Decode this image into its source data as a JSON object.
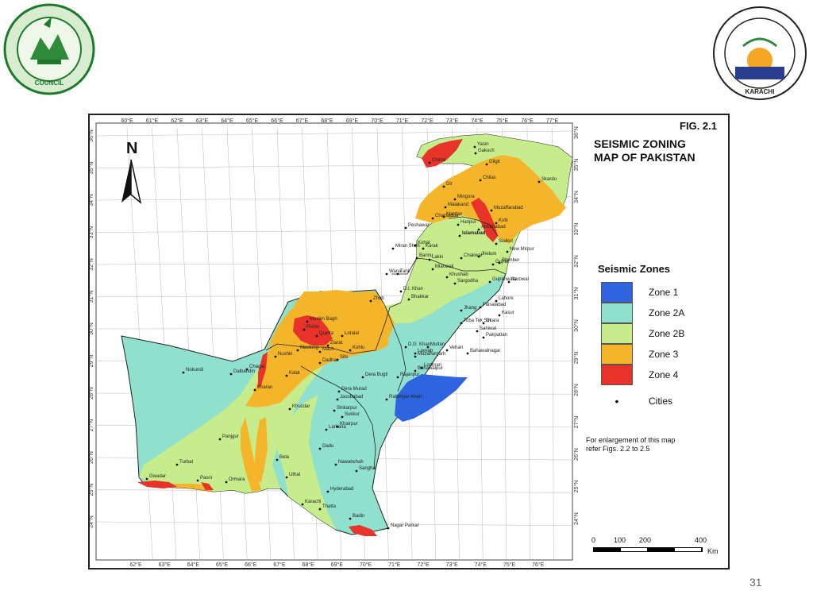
{
  "logos": {
    "left": "Pakistan Engineering Council",
    "right": "NED University of Engineering & Technology Karachi"
  },
  "figure": {
    "label": "FIG. 2.1",
    "title_line1": "SEISMIC ZONING",
    "title_line2": "MAP OF PAKISTAN",
    "north": "N"
  },
  "legend": {
    "title": "Seismic Zones",
    "zones": [
      {
        "label": "Zone 1",
        "color": "#2f64e0"
      },
      {
        "label": "Zone 2A",
        "color": "#8fe0cc"
      },
      {
        "label": "Zone 2B",
        "color": "#c6ec8c"
      },
      {
        "label": "Zone 3",
        "color": "#f5b52a"
      },
      {
        "label": "Zone 4",
        "color": "#e8332a"
      }
    ],
    "cities_symbol": "•",
    "cities_label": "Cities"
  },
  "note": {
    "line1": "For enlargement of this map",
    "line2": "refer Figs. 2.2 to 2.5"
  },
  "scale": {
    "labels": [
      "0",
      "100",
      "200",
      "400"
    ],
    "unit": "Km"
  },
  "longitudes_top": [
    "60°E",
    "61°E",
    "62°E",
    "63°E",
    "64°E",
    "65°E",
    "66°E",
    "67°E",
    "68°E",
    "69°E",
    "70°E",
    "71°E",
    "72°E",
    "73°E",
    "74°E",
    "75°E",
    "76°E",
    "77°E"
  ],
  "longitudes_bottom": [
    "62°E",
    "63°E",
    "64°E",
    "65°E",
    "66°E",
    "67°E",
    "68°E",
    "69°E",
    "70°E",
    "71°E",
    "72°E",
    "73°E",
    "74°E",
    "75°E",
    "76°E"
  ],
  "latitudes_left": [
    "36°N",
    "35°N",
    "34°N",
    "33°N",
    "32°N",
    "31°N",
    "30°N",
    "29°N",
    "28°N",
    "27°N",
    "26°N",
    "25°N",
    "24°N"
  ],
  "latitudes_right": [
    "36°N",
    "35°N",
    "34°N",
    "33°N",
    "32°N",
    "31°N",
    "30°N",
    "29°N",
    "28°N",
    "27°N",
    "26°N",
    "25°N",
    "24°N"
  ],
  "cities": [
    "Yasin",
    "Chitral",
    "Gakuch",
    "Gilgit",
    "Chilas",
    "Skardu",
    "Dir",
    "Mingora",
    "Malakand",
    "Charsadda",
    "Mardan",
    "Peshawar",
    "Haripur",
    "Islamabad",
    "Kohat",
    "Karak",
    "Bannu",
    "Lakki",
    "Miran Shah",
    "Tank",
    "Wana",
    "D.I. Khan",
    "Bhakkar",
    "Mianwali",
    "Khushab",
    "Sargodha",
    "Jhelum",
    "Gujrat",
    "Sialkot",
    "Narowal",
    "Gujranwala",
    "Lahore",
    "Kasur",
    "Okara",
    "Sahiwal",
    "Pakpattan",
    "Faisalabad",
    "Jhang",
    "Toba Tek Sin",
    "Chakwal",
    "Multan",
    "Layyah",
    "Muzaffargarh",
    "D.G. Khan",
    "Vehari",
    "Bahawalnagar",
    "Lodhran",
    "Bahawalpur",
    "Rajanpur",
    "Rahimyar Khan",
    "Dera Bugti",
    "Dera Murad",
    "Jacobabad",
    "Shikarpur",
    "Sukkur",
    "Khairpur",
    "Larkana",
    "Dadu",
    "Nawabshah",
    "Sanghar",
    "Hyderabad",
    "Thatta",
    "Badin",
    "Karachi",
    "Nagar Parkar",
    "Zhob",
    "Muslim Bagh",
    "Pishin",
    "Quetta",
    "Ziarat",
    "Loralai",
    "Kohlu",
    "Mastung",
    "Mach",
    "Sibi",
    "Dadhar",
    "Nushki",
    "Kalat",
    "Khuzdar",
    "Kharan",
    "Chagai",
    "Dalbandin",
    "Nokundi",
    "Panjgur",
    "Turbat",
    "Bela",
    "Uthal",
    "Gwadar",
    "Pasni",
    "Ormara",
    "Kotli",
    "New Mirpur",
    "Bhimber",
    "Muzaffarabad",
    "Abbottabad"
  ],
  "page_number": "31"
}
